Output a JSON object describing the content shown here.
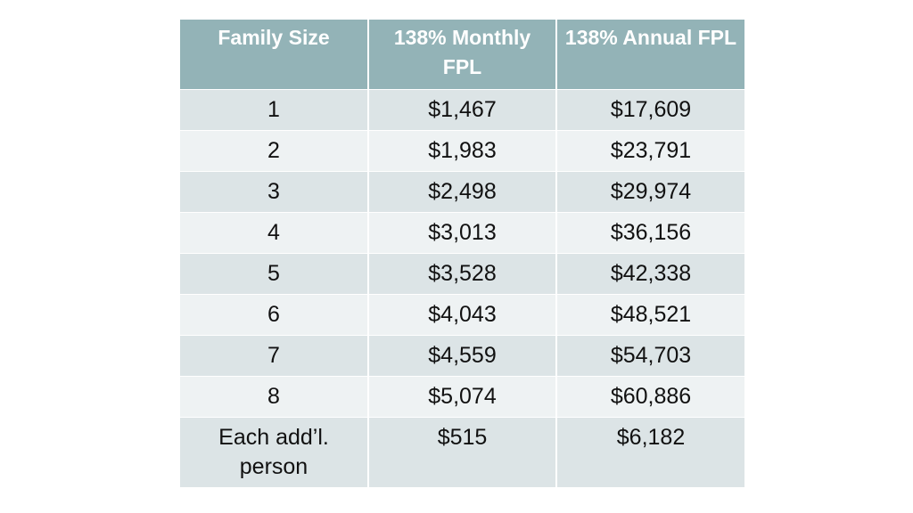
{
  "table": {
    "headers": [
      "Family Size",
      "138% Monthly FPL",
      "138% Annual FPL"
    ],
    "rows": [
      [
        "1",
        "$1,467",
        "$17,609"
      ],
      [
        "2",
        "$1,983",
        "$23,791"
      ],
      [
        "3",
        "$2,498",
        "$29,974"
      ],
      [
        "4",
        "$3,013",
        "$36,156"
      ],
      [
        "5",
        "$3,528",
        "$42,338"
      ],
      [
        "6",
        "$4,043",
        "$48,521"
      ],
      [
        "7",
        "$4,559",
        "$54,703"
      ],
      [
        "8",
        "$5,074",
        "$60,886"
      ],
      [
        "Each add’l. person",
        "$515",
        "$6,182"
      ]
    ]
  },
  "colors": {
    "header_bg": "#93b3b7",
    "header_text": "#ffffff",
    "row_odd": "#dce4e6",
    "row_even": "#eef2f3"
  }
}
